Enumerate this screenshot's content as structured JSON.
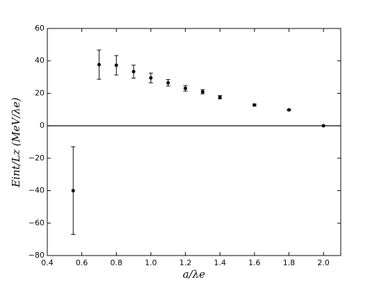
{
  "chart_data": {
    "type": "scatter",
    "x_label": "a/λe",
    "y_label": "Eint/Lz (MeV/λe)",
    "x": [
      0.55,
      0.7,
      0.8,
      0.9,
      1.0,
      1.1,
      1.2,
      1.3,
      1.4,
      1.6,
      1.8,
      2.0
    ],
    "series": [
      {
        "color": "#000000",
        "values": [
          -40,
          37.7,
          37.3,
          33.4,
          29.5,
          26.5,
          23.1,
          21,
          17.6,
          12.8,
          9.8,
          0
        ],
        "errors": [
          27,
          9,
          6,
          4,
          3,
          2,
          1.7,
          1.3,
          1,
          0.6,
          0.4,
          0
        ]
      }
    ],
    "xlim": [
      0.4,
      2.1
    ],
    "ylim": [
      -80,
      60
    ],
    "xticks": [
      0.4,
      0.6,
      0.8,
      {
        "value": 1,
        "label": "1.0"
      },
      1.2,
      1.4,
      1.6,
      1.8,
      {
        "value": 2,
        "label": "2.0"
      }
    ],
    "yticks": [
      {
        "value": -80,
        "label": "−80"
      },
      {
        "value": -60,
        "label": "−60"
      },
      {
        "value": -40,
        "label": "−40"
      },
      {
        "value": -20,
        "label": "−20"
      },
      0,
      20,
      40,
      60
    ],
    "hline": 0
  }
}
